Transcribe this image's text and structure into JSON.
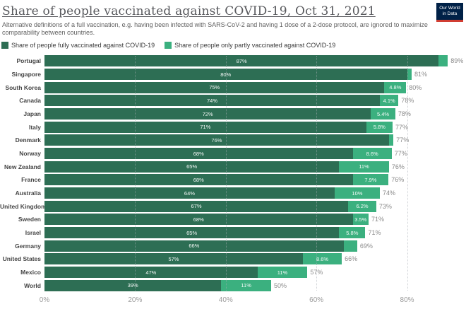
{
  "header": {
    "title": "Share of people vaccinated against COVID-19, Oct 31, 2021",
    "subtitle_line1": "Alternative definitions of a full vaccination, e.g. having been infected with SARS-CoV-2 and having 1 dose of a 2-dose protocol, are ignored to maximize",
    "subtitle_line2": "comparability between countries.",
    "logo": {
      "line1": "Our World",
      "line2": "in Data",
      "bg_color": "#002147",
      "stripe_color": "#d13d32"
    }
  },
  "legend": [
    {
      "label": "Share of people fully vaccinated against COVID-19",
      "color": "#2d6e54"
    },
    {
      "label": "Share of people only partly vaccinated against COVID-19",
      "color": "#3bb07f"
    }
  ],
  "chart_data": {
    "type": "bar",
    "orientation": "horizontal",
    "stacked": true,
    "title": "Share of people vaccinated against COVID-19, Oct 31, 2021",
    "categories": [
      "Portugal",
      "Singapore",
      "South Korea",
      "Canada",
      "Japan",
      "Italy",
      "Denmark",
      "Norway",
      "New Zealand",
      "France",
      "Australia",
      "United Kingdom",
      "Sweden",
      "Israel",
      "Germany",
      "United States",
      "Mexico",
      "World"
    ],
    "series": [
      {
        "name": "Share of people fully vaccinated against COVID-19",
        "color": "#2d6e54",
        "values": [
          87,
          80,
          75,
          74,
          72,
          71,
          76,
          68,
          65,
          68,
          64,
          67,
          68,
          65,
          66,
          57,
          47,
          39
        ],
        "labels": [
          "87%",
          "80%",
          "75%",
          "74%",
          "72%",
          "71%",
          "76%",
          "68%",
          "65%",
          "68%",
          "64%",
          "67%",
          "68%",
          "65%",
          "66%",
          "57%",
          "47%",
          "39%"
        ]
      },
      {
        "name": "Share of people only partly vaccinated against COVID-19",
        "color": "#3bb07f",
        "values": [
          2,
          1,
          4.8,
          4.1,
          5.4,
          5.8,
          1,
          8.6,
          11,
          7.9,
          10,
          6.2,
          3.5,
          5.8,
          3,
          8.6,
          11,
          11
        ],
        "labels": [
          "",
          "",
          "4.8%",
          "4.1%",
          "5.4%",
          "5.8%",
          "",
          "8.6%",
          "11%",
          "7.9%",
          "10%",
          "6.2%",
          "3.5%",
          "5.8%",
          "",
          "8.6%",
          "11%",
          "11%"
        ]
      }
    ],
    "totals": [
      "89%",
      "81%",
      "80%",
      "78%",
      "78%",
      "77%",
      "77%",
      "77%",
      "76%",
      "76%",
      "74%",
      "73%",
      "71%",
      "71%",
      "69%",
      "66%",
      "57%",
      "50%"
    ],
    "x_ticks": [
      "0%",
      "20%",
      "40%",
      "60%",
      "80%"
    ],
    "x_tick_values": [
      0,
      20,
      40,
      60,
      80
    ],
    "xlim": [
      0,
      93
    ],
    "grid": true,
    "legend_position": "top"
  }
}
